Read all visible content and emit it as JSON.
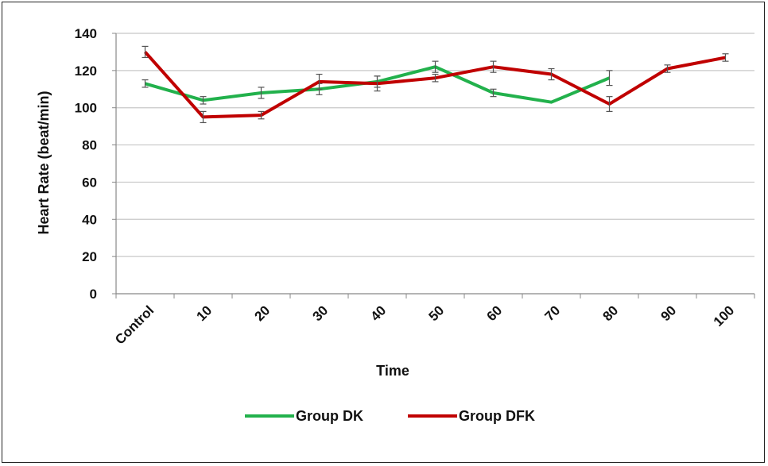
{
  "chart_data": {
    "type": "line",
    "title": "",
    "xlabel": "Time",
    "ylabel": "Heart Rate (beat/min)",
    "categories": [
      "Control",
      "10",
      "20",
      "30",
      "40",
      "50",
      "60",
      "70",
      "80",
      "90",
      "100"
    ],
    "ylim": [
      0,
      140
    ],
    "yticks": [
      0,
      20,
      40,
      60,
      80,
      100,
      120,
      140
    ],
    "grid": true,
    "legend_position": "bottom",
    "series": [
      {
        "name": "Group DK",
        "color": "#22b14c",
        "values": [
          113,
          104,
          108,
          110,
          114,
          122,
          108,
          103,
          116,
          null,
          null
        ],
        "error": [
          2,
          2,
          3,
          3,
          3,
          3,
          2,
          0,
          4,
          null,
          null
        ]
      },
      {
        "name": "Group DFK",
        "color": "#c00000",
        "values": [
          130,
          95,
          96,
          114,
          113,
          116,
          122,
          118,
          102,
          121,
          127
        ],
        "error": [
          3,
          3,
          2,
          4,
          4,
          2,
          3,
          3,
          4,
          2,
          2
        ]
      }
    ]
  }
}
